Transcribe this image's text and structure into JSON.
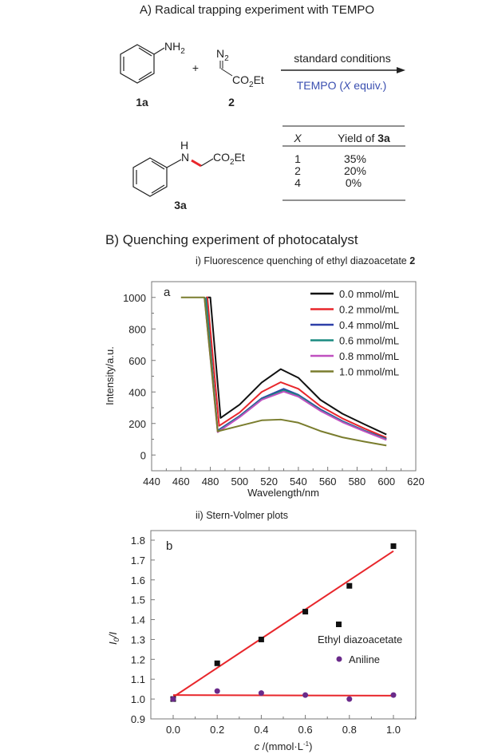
{
  "section_a": {
    "title": "A) Radical trapping experiment with TEMPO",
    "reactant1": {
      "group_main": "NH",
      "group_sub": "2",
      "label": "1a"
    },
    "plus": "+",
    "reactant2": {
      "n2_main": "N",
      "n2_sub": "2",
      "ester_a": "CO",
      "ester_sub": "2",
      "ester_b": "Et",
      "label": "2"
    },
    "arrow_top": "standard conditions",
    "arrow_bottom_a": "TEMPO (",
    "arrow_bottom_x": "X",
    "arrow_bottom_b": " equiv.)",
    "product": {
      "h": "H",
      "n": "N",
      "ester_a": "CO",
      "ester_sub": "2",
      "ester_b": "Et",
      "label": "3a"
    },
    "table": {
      "header_x": "X",
      "header_yield": "Yield of ",
      "header_yield_bold": "3a",
      "rows": [
        {
          "x": "1",
          "yield": "35%"
        },
        {
          "x": "2",
          "yield": "20%"
        },
        {
          "x": "4",
          "yield": "0%"
        }
      ]
    },
    "colors": {
      "tempo": "#3a4fb0",
      "new_bond": "#e8262b"
    }
  },
  "section_b": {
    "title": "B) Quenching experiment of photocatalyst",
    "sub_i_a": "i) Fluorescence quenching of ethyl diazoacetate ",
    "sub_i_b": "2",
    "sub_ii": "ii) Stern-Volmer plots"
  },
  "chart_data": [
    {
      "type": "line",
      "panel_label": "a",
      "xlabel": "Wavelength/nm",
      "ylabel": "Intensity/a.u.",
      "xlim": [
        440,
        620
      ],
      "ylim": [
        -100,
        1100
      ],
      "xticks": [
        "440",
        "460",
        "480",
        "500",
        "520",
        "540",
        "560",
        "580",
        "600",
        "620"
      ],
      "yticks": [
        "0",
        "200",
        "400",
        "600",
        "800",
        "1000"
      ],
      "legend_position": "top-right",
      "series": [
        {
          "name": "0.0 mmol/mL",
          "color": "#111111",
          "points": [
            [
              478,
              1000
            ],
            [
              480,
              1000
            ],
            [
              487,
              235
            ],
            [
              500,
              320
            ],
            [
              515,
              460
            ],
            [
              528,
              545
            ],
            [
              540,
              490
            ],
            [
              555,
              350
            ],
            [
              570,
              262
            ],
            [
              585,
              195
            ],
            [
              600,
              130
            ]
          ]
        },
        {
          "name": "0.2 mmol/mL",
          "color": "#e8262b",
          "points": [
            [
              477,
              1000
            ],
            [
              478,
              1000
            ],
            [
              486,
              185
            ],
            [
              500,
              270
            ],
            [
              515,
              400
            ],
            [
              528,
              462
            ],
            [
              540,
              420
            ],
            [
              555,
              310
            ],
            [
              570,
              232
            ],
            [
              585,
              168
            ],
            [
              600,
              110
            ]
          ]
        },
        {
          "name": "0.4 mmol/mL",
          "color": "#2d3fa8",
          "points": [
            [
              477,
              1000
            ],
            [
              485,
              155
            ],
            [
              500,
              248
            ],
            [
              515,
              360
            ],
            [
              530,
              420
            ],
            [
              540,
              382
            ],
            [
              555,
              290
            ],
            [
              570,
              215
            ],
            [
              585,
              155
            ],
            [
              600,
              102
            ]
          ]
        },
        {
          "name": "0.6 mmol/mL",
          "color": "#1a8a80",
          "points": [
            [
              477,
              1000
            ],
            [
              485,
              150
            ],
            [
              500,
              245
            ],
            [
              515,
              355
            ],
            [
              530,
              412
            ],
            [
              540,
              378
            ],
            [
              555,
              285
            ],
            [
              570,
              212
            ],
            [
              585,
              152
            ],
            [
              600,
              100
            ]
          ]
        },
        {
          "name": "0.8 mmol/mL",
          "color": "#c050c0",
          "points": [
            [
              476,
              1000
            ],
            [
              485,
              145
            ],
            [
              500,
              240
            ],
            [
              515,
              350
            ],
            [
              530,
              402
            ],
            [
              540,
              370
            ],
            [
              555,
              280
            ],
            [
              570,
              208
            ],
            [
              585,
              150
            ],
            [
              600,
              95
            ]
          ]
        },
        {
          "name": "1.0 mmol/mL",
          "color": "#7a7d2e",
          "points": [
            [
              460,
              1000
            ],
            [
              476,
              1000
            ],
            [
              485,
              150
            ],
            [
              500,
              185
            ],
            [
              515,
              220
            ],
            [
              528,
              225
            ],
            [
              540,
              205
            ],
            [
              555,
              152
            ],
            [
              570,
              112
            ],
            [
              585,
              85
            ],
            [
              600,
              60
            ]
          ]
        }
      ]
    },
    {
      "type": "scatter",
      "panel_label": "b",
      "xlabel_italic": "c",
      "xlabel_rest": " /(mmol·L",
      "xlabel_sup": "-1",
      "xlabel_end": ")",
      "ylabel_main": "I",
      "ylabel_sub": "0",
      "ylabel_end": "/I",
      "xlim": [
        -0.1,
        1.1
      ],
      "ylim": [
        0.9,
        1.85
      ],
      "xticks": [
        "0.0",
        "0.2",
        "0.4",
        "0.6",
        "0.8",
        "1.0"
      ],
      "yticks": [
        "0.9",
        "1.0",
        "1.1",
        "1.2",
        "1.3",
        "1.4",
        "1.5",
        "1.6",
        "1.7",
        "1.8"
      ],
      "legend_position": "center-right",
      "series": [
        {
          "name": "Ethyl diazoacetate",
          "marker": "square",
          "color": "#111111",
          "x": [
            0.0,
            0.2,
            0.4,
            0.6,
            0.8,
            1.0
          ],
          "y": [
            1.0,
            1.18,
            1.3,
            1.44,
            1.57,
            1.77
          ],
          "fit": {
            "color": "#e8262b",
            "x": [
              0.0,
              1.0
            ],
            "y": [
              1.01,
              1.745
            ]
          }
        },
        {
          "name": "Aniline",
          "marker": "circle",
          "color": "#6a2a8a",
          "x": [
            0.0,
            0.2,
            0.4,
            0.6,
            0.8,
            1.0
          ],
          "y": [
            1.0,
            1.04,
            1.03,
            1.02,
            1.0,
            1.02
          ],
          "fit": {
            "color": "#e8262b",
            "x": [
              0.0,
              1.0
            ],
            "y": [
              1.02,
              1.017
            ]
          }
        }
      ]
    }
  ]
}
